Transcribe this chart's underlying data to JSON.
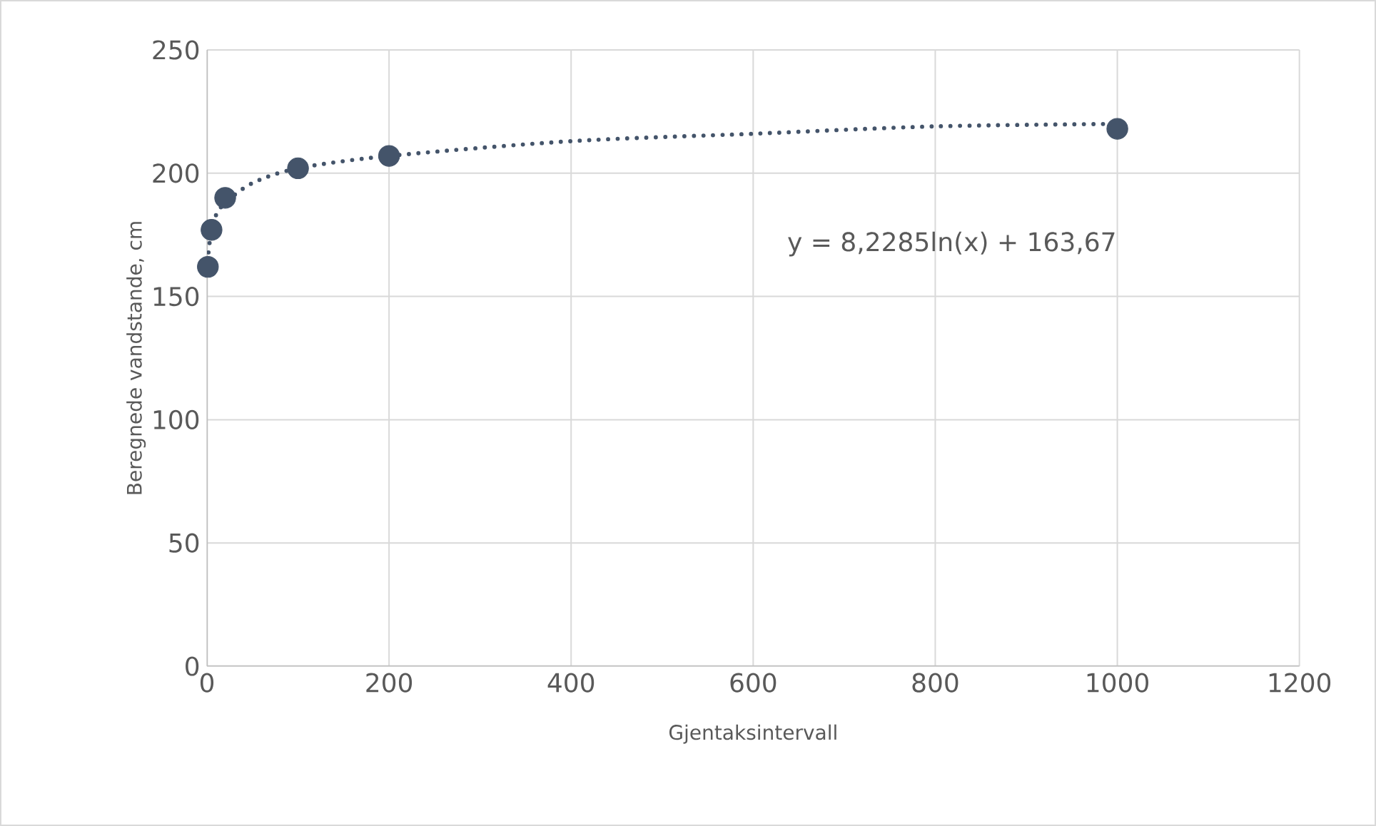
{
  "chart_data": {
    "type": "scatter",
    "xlabel": "Gjentaksintervall",
    "ylabel": "Beregnede vandstande, cm",
    "x": [
      1,
      5,
      20,
      100,
      200,
      1000
    ],
    "series": [
      {
        "color": "#44546a",
        "marker": "circle",
        "values": [
          162,
          177,
          190,
          202,
          207,
          218
        ]
      },
      {
        "type": "line",
        "color": "#44546a",
        "line_style": "dotted",
        "marker": "none",
        "x": [
          1,
          2,
          5,
          10,
          20,
          50,
          100,
          200,
          400,
          600,
          800,
          1000
        ],
        "values": [
          164,
          169,
          177,
          183,
          188,
          196,
          202,
          207,
          213,
          216,
          219,
          220
        ]
      }
    ],
    "annotations": [
      "y = 8,2285ln(x) + 163,67"
    ],
    "xlim": [
      0,
      1200
    ],
    "xticks": [
      0,
      200,
      400,
      600,
      800,
      1000,
      1200
    ],
    "ylim": [
      0,
      250
    ],
    "yticks": [
      0,
      50,
      100,
      150,
      200,
      250
    ],
    "grid": true
  }
}
